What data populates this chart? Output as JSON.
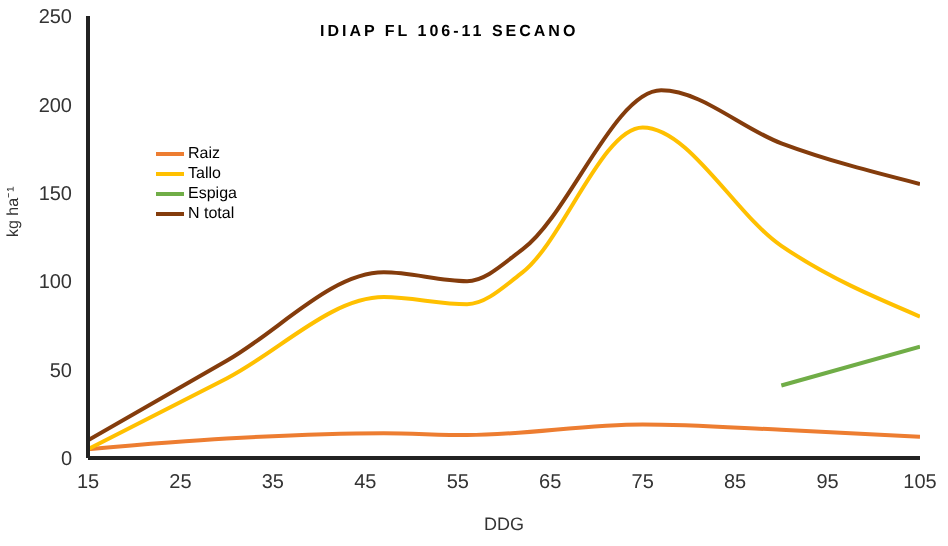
{
  "chart_data": {
    "type": "line",
    "title": "IDIAP FL 106-11 SECANO",
    "xlabel": "DDG",
    "ylabel": "kg ha⁻¹",
    "xlim": [
      15,
      105
    ],
    "xticks": [
      15,
      25,
      35,
      45,
      55,
      65,
      75,
      85,
      95,
      105
    ],
    "ylim": [
      0,
      250
    ],
    "yticks": [
      0,
      50,
      100,
      150,
      200,
      250
    ],
    "grid": false,
    "legend": "top left",
    "marker": "none",
    "line_style": "solid",
    "series": [
      {
        "name": "Raiz",
        "color": "#ed7d31",
        "x": [
          15,
          30,
          47,
          56,
          75,
          90,
          105
        ],
        "values": [
          5,
          11,
          14,
          13,
          19,
          16,
          12
        ]
      },
      {
        "name": "Tallo",
        "color": "#ffc000",
        "x": [
          15,
          30,
          47,
          56,
          62,
          75,
          90,
          105
        ],
        "values": [
          5,
          45,
          91,
          87,
          105,
          187,
          120,
          80
        ]
      },
      {
        "name": "Espiga",
        "color": "#70ad47",
        "x": [
          90,
          105
        ],
        "values": [
          41,
          63
        ]
      },
      {
        "name": "N total",
        "color": "#843c0c",
        "x": [
          15,
          30,
          47,
          56,
          62,
          77,
          90,
          105
        ],
        "values": [
          10,
          55,
          105,
          100,
          118,
          208,
          178,
          155
        ]
      }
    ]
  }
}
